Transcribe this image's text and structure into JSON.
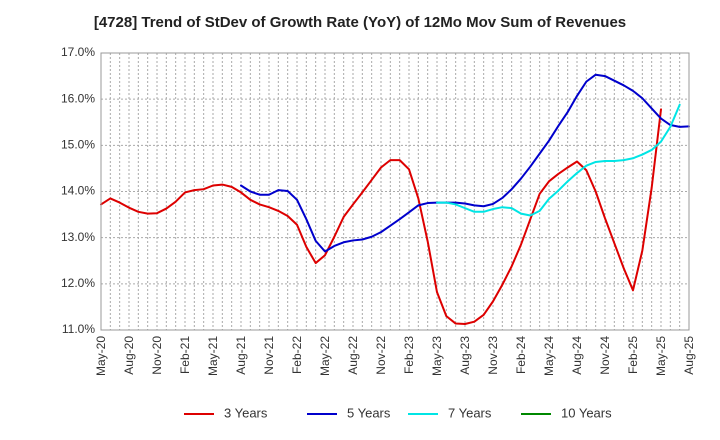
{
  "chart_data": {
    "type": "line",
    "title": "[4728]  Trend of StDev of Growth Rate (YoY) of 12Mo Mov Sum of Revenues",
    "xlabel": "",
    "ylabel": "",
    "ylim": [
      11.0,
      17.0
    ],
    "y_ticks": [
      11.0,
      12.0,
      13.0,
      14.0,
      15.0,
      16.0,
      17.0
    ],
    "y_tick_labels": [
      "11.0%",
      "12.0%",
      "13.0%",
      "14.0%",
      "15.0%",
      "16.0%",
      "17.0%"
    ],
    "x_ticks": [
      0,
      3,
      6,
      9,
      12,
      15,
      18,
      21,
      24,
      27,
      30,
      33,
      36,
      39,
      42,
      45,
      48,
      51,
      54,
      57,
      60,
      63
    ],
    "x_tick_labels": [
      "May-20",
      "Aug-20",
      "Nov-20",
      "Feb-21",
      "May-21",
      "Aug-21",
      "Nov-21",
      "Feb-22",
      "May-22",
      "Aug-22",
      "Nov-22",
      "Feb-23",
      "May-23",
      "Aug-23",
      "Nov-23",
      "Feb-24",
      "May-24",
      "Aug-24",
      "Nov-24",
      "Feb-25",
      "May-25",
      "Aug-25"
    ],
    "xlim": [
      0,
      63
    ],
    "grid": true,
    "legend_position": "bottom",
    "series": [
      {
        "name": "3 Years",
        "color": "#dd0000",
        "x_start": 0,
        "values": [
          13.72,
          13.85,
          13.76,
          13.65,
          13.56,
          13.52,
          13.53,
          13.63,
          13.78,
          13.98,
          14.03,
          14.05,
          14.13,
          14.15,
          14.1,
          13.98,
          13.82,
          13.72,
          13.66,
          13.58,
          13.47,
          13.28,
          12.8,
          12.45,
          12.62,
          13.02,
          13.45,
          13.72,
          13.98,
          14.25,
          14.52,
          14.68,
          14.68,
          14.48,
          13.85,
          12.92,
          11.82,
          11.3,
          11.14,
          11.13,
          11.18,
          11.33,
          11.62,
          11.98,
          12.38,
          12.85,
          13.4,
          13.95,
          14.22,
          14.38,
          14.52,
          14.65,
          14.46,
          14.0,
          13.42,
          12.88,
          12.34,
          11.86,
          12.72,
          14.08,
          15.78
        ]
      },
      {
        "name": "5 Years",
        "color": "#0000cc",
        "x_start": 15,
        "values": [
          14.13,
          14.0,
          13.93,
          13.93,
          14.03,
          14.01,
          13.82,
          13.4,
          12.93,
          12.7,
          12.82,
          12.9,
          12.94,
          12.96,
          13.02,
          13.12,
          13.26,
          13.4,
          13.55,
          13.7,
          13.75,
          13.76,
          13.76,
          13.76,
          13.74,
          13.7,
          13.68,
          13.73,
          13.86,
          14.05,
          14.28,
          14.54,
          14.82,
          15.1,
          15.42,
          15.72,
          16.07,
          16.38,
          16.53,
          16.5,
          16.4,
          16.3,
          16.18,
          16.02,
          15.8,
          15.58,
          15.44,
          15.4,
          15.41
        ]
      },
      {
        "name": "7 Years",
        "color": "#00e5e5",
        "x_start": 36,
        "values": [
          13.76,
          13.76,
          13.72,
          13.64,
          13.56,
          13.56,
          13.62,
          13.66,
          13.64,
          13.52,
          13.48,
          13.58,
          13.84,
          14.02,
          14.22,
          14.4,
          14.56,
          14.64,
          14.66,
          14.66,
          14.68,
          14.72,
          14.8,
          14.9,
          15.08,
          15.4,
          15.88
        ]
      },
      {
        "name": "10 Years",
        "color": "#008800",
        "x_start": 0,
        "values": []
      }
    ]
  }
}
